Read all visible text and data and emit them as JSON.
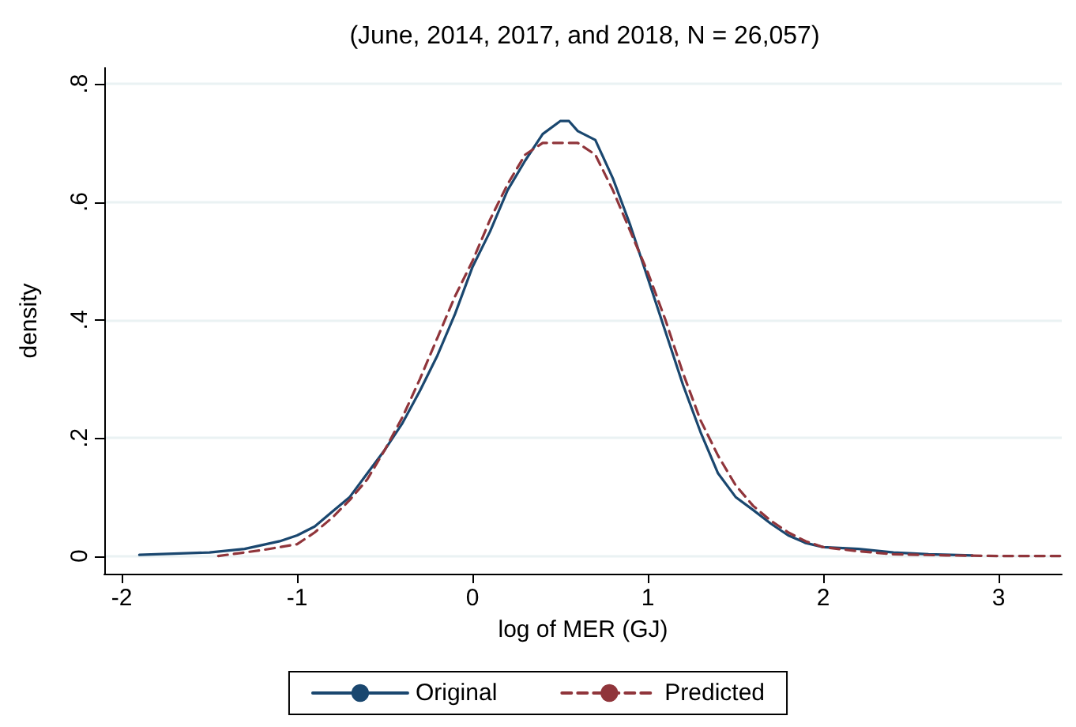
{
  "chart_data": {
    "type": "line",
    "title": "(June, 2014, 2017, and 2018, N = 26,057)",
    "xlabel": "log of MER (GJ)",
    "ylabel": "density",
    "xlim": [
      -2.1,
      3.36
    ],
    "ylim": [
      -0.03,
      0.827
    ],
    "xticks": [
      -2,
      -1,
      0,
      1,
      2,
      3
    ],
    "yticks": [
      0,
      {
        "value": 0.2,
        "label": ".2"
      },
      {
        "value": 0.4,
        "label": ".4"
      },
      {
        "value": 0.6,
        "label": ".6"
      },
      {
        "value": 0.8,
        "label": ".8"
      }
    ],
    "grid": "y",
    "legend": "bottom",
    "marker": "none",
    "series": [
      {
        "name": "Original",
        "color": "#1a476f",
        "line_style": "solid",
        "x": [
          -1.9,
          -1.5,
          -1.3,
          -1.1,
          -1.0,
          -0.9,
          -0.8,
          -0.7,
          -0.6,
          -0.5,
          -0.4,
          -0.3,
          -0.2,
          -0.1,
          0,
          0.1,
          0.2,
          0.3,
          0.4,
          0.5,
          0.55,
          0.6,
          0.7,
          0.8,
          0.9,
          1.0,
          1.1,
          1.2,
          1.3,
          1.4,
          1.5,
          1.6,
          1.7,
          1.8,
          1.9,
          2.0,
          2.2,
          2.4,
          2.6,
          2.85
        ],
        "values": [
          0.002,
          0.006,
          0.012,
          0.025,
          0.035,
          0.05,
          0.075,
          0.1,
          0.14,
          0.18,
          0.225,
          0.28,
          0.34,
          0.41,
          0.49,
          0.55,
          0.62,
          0.67,
          0.715,
          0.737,
          0.737,
          0.72,
          0.705,
          0.64,
          0.56,
          0.47,
          0.38,
          0.29,
          0.21,
          0.14,
          0.1,
          0.078,
          0.055,
          0.035,
          0.022,
          0.015,
          0.012,
          0.006,
          0.003,
          0.001
        ]
      },
      {
        "name": "Predicted",
        "color": "#90353b",
        "line_style": "dashed",
        "x": [
          -1.45,
          -1.2,
          -1.0,
          -0.9,
          -0.8,
          -0.7,
          -0.6,
          -0.5,
          -0.4,
          -0.3,
          -0.2,
          -0.1,
          0,
          0.1,
          0.2,
          0.3,
          0.4,
          0.5,
          0.6,
          0.7,
          0.8,
          0.9,
          1.0,
          1.1,
          1.2,
          1.3,
          1.4,
          1.5,
          1.6,
          1.7,
          1.8,
          1.9,
          2.0,
          2.2,
          2.4,
          2.7,
          3.0,
          3.35
        ],
        "values": [
          0.0,
          0.01,
          0.02,
          0.04,
          0.065,
          0.095,
          0.13,
          0.18,
          0.235,
          0.3,
          0.37,
          0.44,
          0.5,
          0.57,
          0.63,
          0.68,
          0.7,
          0.7,
          0.7,
          0.68,
          0.62,
          0.55,
          0.48,
          0.4,
          0.31,
          0.23,
          0.17,
          0.12,
          0.085,
          0.06,
          0.04,
          0.025,
          0.015,
          0.008,
          0.003,
          0.001,
          0.0,
          0.0
        ]
      }
    ]
  }
}
